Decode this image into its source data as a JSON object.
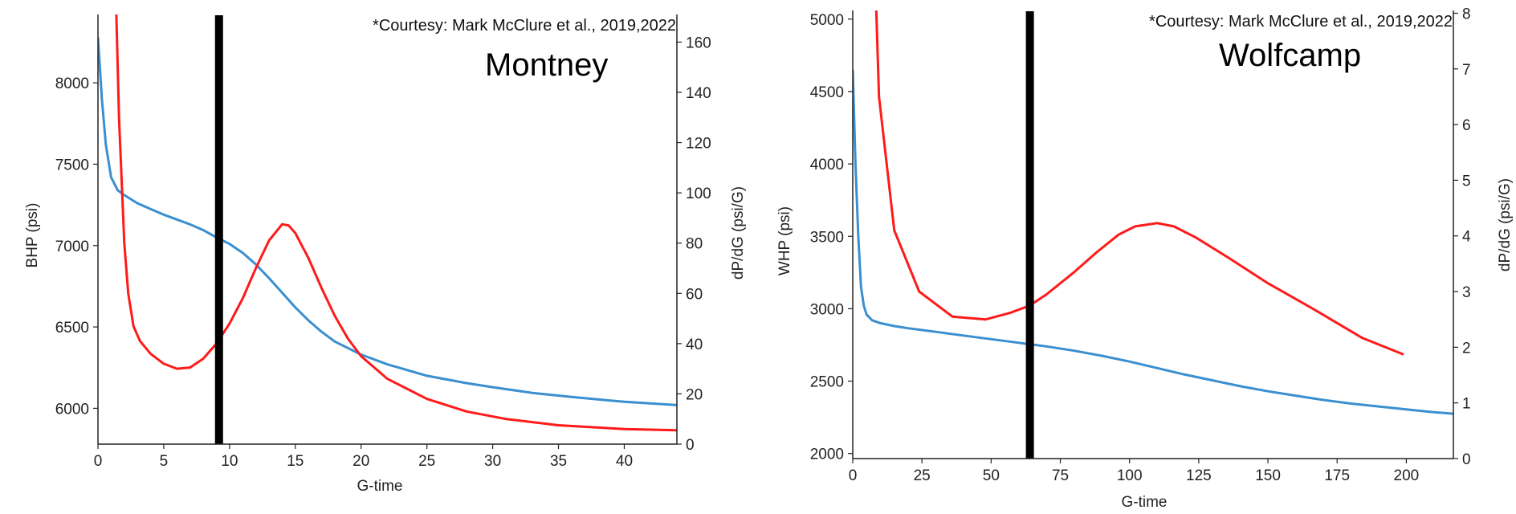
{
  "chart_data": [
    {
      "type": "line",
      "title": "Montney",
      "annotation": "*Courtesy: Mark McClure et al., 2019,2022",
      "xlabel": "G-time",
      "ylabel": "BHP (psi)",
      "y2label": "dP/dG (psi/G)",
      "xlim": [
        0,
        44
      ],
      "ylim": [
        5780,
        8420
      ],
      "y2lim": [
        0,
        171
      ],
      "xticks": [
        "0",
        "5",
        "10",
        "15",
        "20",
        "25",
        "30",
        "35",
        "40"
      ],
      "yticks": [
        "6000",
        "6500",
        "7000",
        "7500",
        "8000"
      ],
      "y2ticks": [
        "0",
        "20",
        "40",
        "60",
        "80",
        "100",
        "120",
        "140",
        "160"
      ],
      "marker_x": 9.2,
      "series": [
        {
          "axis": "y",
          "color": "#3a8fd0",
          "x": [
            0,
            0.3,
            0.6,
            1.0,
            1.5,
            2,
            3,
            4,
            5,
            6,
            7,
            8,
            9,
            10,
            11,
            12,
            13,
            14,
            15,
            16,
            17,
            18,
            20,
            22,
            25,
            28,
            30,
            33,
            36,
            40,
            44
          ],
          "y": [
            8280,
            7900,
            7620,
            7420,
            7340,
            7310,
            7260,
            7225,
            7190,
            7160,
            7130,
            7095,
            7050,
            7010,
            6955,
            6885,
            6800,
            6710,
            6620,
            6540,
            6470,
            6410,
            6330,
            6270,
            6200,
            6155,
            6130,
            6095,
            6070,
            6040,
            6020
          ]
        },
        {
          "axis": "y2",
          "color": "#ff1a1a",
          "x": [
            1.4,
            1.6,
            2.0,
            2.3,
            2.7,
            3.2,
            4,
            5,
            6,
            7,
            8,
            9,
            10,
            11,
            12,
            13,
            14,
            14.5,
            15,
            16,
            17,
            18,
            19,
            20,
            22,
            25,
            28,
            31,
            35,
            40,
            44
          ],
          "y": [
            171,
            130,
            80,
            60,
            47,
            41,
            36,
            32,
            30,
            30.5,
            34,
            40,
            48,
            58,
            70,
            81,
            87.5,
            87,
            84,
            74,
            62,
            51,
            42,
            35,
            26,
            18,
            13,
            10,
            7.5,
            6,
            5.5
          ]
        }
      ]
    },
    {
      "type": "line",
      "title": "Wolfcamp",
      "annotation": "*Courtesy: Mark McClure et al., 2019,2022",
      "xlabel": "G-time",
      "ylabel": "WHP (psi)",
      "y2label": "dP/dG (psi/G)",
      "xlim": [
        0,
        217
      ],
      "ylim": [
        1965,
        5060
      ],
      "y2lim": [
        0,
        8.05
      ],
      "xticks": [
        "0",
        "25",
        "50",
        "75",
        "100",
        "125",
        "150",
        "175",
        "200"
      ],
      "yticks": [
        "2000",
        "2500",
        "3000",
        "3500",
        "4000",
        "4500",
        "5000"
      ],
      "y2ticks": [
        "0",
        "1",
        "2",
        "3",
        "4",
        "5",
        "6",
        "7",
        "8"
      ],
      "marker_x": 64,
      "series": [
        {
          "axis": "y",
          "color": "#3a8fd0",
          "x": [
            0,
            1,
            2,
            3,
            4,
            5,
            7,
            10,
            15,
            20,
            30,
            40,
            50,
            60,
            70,
            80,
            90,
            100,
            110,
            120,
            130,
            140,
            150,
            160,
            170,
            180,
            190,
            200,
            210,
            217
          ],
          "y": [
            4650,
            4000,
            3500,
            3150,
            3020,
            2960,
            2920,
            2900,
            2880,
            2865,
            2840,
            2815,
            2790,
            2765,
            2740,
            2710,
            2675,
            2635,
            2590,
            2545,
            2505,
            2465,
            2430,
            2400,
            2370,
            2345,
            2325,
            2305,
            2285,
            2275
          ]
        },
        {
          "axis": "y2",
          "color": "#ff1a1a",
          "x": [
            8.5,
            9.5,
            15,
            24,
            36,
            48,
            57,
            64,
            70,
            80,
            88,
            96,
            102,
            110,
            116,
            124,
            136,
            150,
            167,
            184,
            199
          ],
          "y": [
            8.05,
            6.5,
            4.1,
            3.0,
            2.55,
            2.5,
            2.62,
            2.75,
            2.95,
            3.35,
            3.7,
            4.02,
            4.17,
            4.23,
            4.17,
            3.97,
            3.6,
            3.15,
            2.67,
            2.17,
            1.87
          ]
        }
      ]
    }
  ]
}
